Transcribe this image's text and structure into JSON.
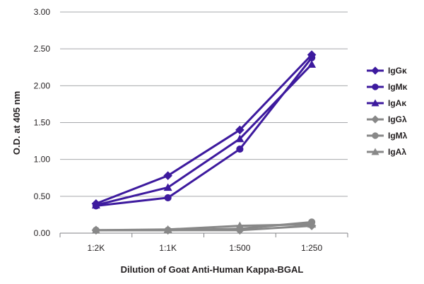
{
  "chart_data": {
    "type": "line",
    "xlabel": "Dilution of Goat Anti-Human Kappa-BGAL",
    "ylabel": "O.D. at 405 nm",
    "categories": [
      "1:2K",
      "1:1K",
      "1:500",
      "1:250"
    ],
    "ylim": [
      0,
      3
    ],
    "yticks": [
      "0.00",
      "0.50",
      "1.00",
      "1.50",
      "2.00",
      "2.50",
      "3.00"
    ],
    "grid": "horizontal",
    "legend_position": "right",
    "series": [
      {
        "name": "IgGκ",
        "color": "#3d1a9e",
        "marker": "diamond",
        "values": [
          0.4,
          0.78,
          1.4,
          2.42
        ]
      },
      {
        "name": "IgMκ",
        "color": "#3d1a9e",
        "marker": "circle",
        "values": [
          0.37,
          0.48,
          1.14,
          2.38
        ]
      },
      {
        "name": "IgAκ",
        "color": "#3d1a9e",
        "marker": "triangle",
        "values": [
          0.38,
          0.62,
          1.28,
          2.29
        ]
      },
      {
        "name": "IgGλ",
        "color": "#888888",
        "marker": "diamond",
        "values": [
          0.04,
          0.04,
          0.04,
          0.1
        ]
      },
      {
        "name": "IgMλ",
        "color": "#888888",
        "marker": "circle",
        "values": [
          0.04,
          0.04,
          0.06,
          0.15
        ]
      },
      {
        "name": "IgAλ",
        "color": "#888888",
        "marker": "triangle",
        "values": [
          0.04,
          0.05,
          0.1,
          0.12
        ]
      }
    ]
  }
}
